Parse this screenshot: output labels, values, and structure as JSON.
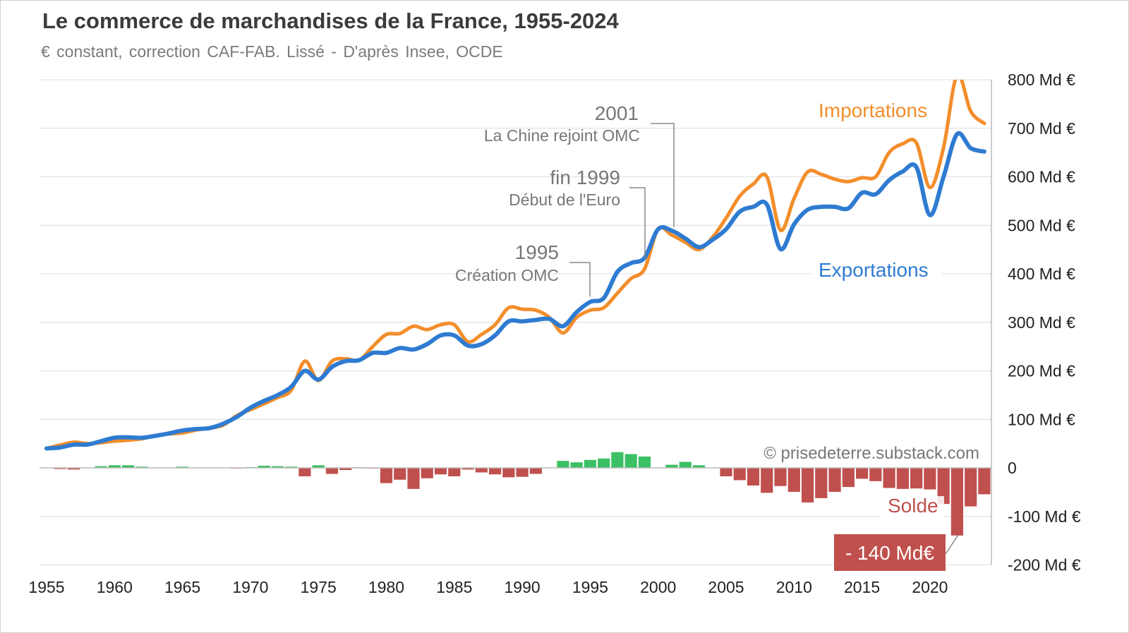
{
  "title": "Le commerce de marchandises de la France, 1955-2024",
  "subtitle": "€ constant, correction CAF-FAB. Lissé - D'après Insee, OCDE",
  "copyright": "© prisedeterre.substack.com",
  "colors": {
    "imports": "#f28e2b",
    "exports": "#2e7bd1",
    "surplus": "#3cc065",
    "deficit": "#c0504d"
  },
  "annotations": [
    {
      "year_label": "2001",
      "text": "La Chine rejoint OMC",
      "year": 2001
    },
    {
      "year_label": "fin 1999",
      "text": "Début de l'Euro",
      "year": 1999
    },
    {
      "year_label": "1995",
      "text": "Création OMC",
      "year": 1995
    }
  ],
  "labels": {
    "imports": "Importations",
    "exports": "Exportations",
    "solde": "Solde",
    "min_callout": "- 140 Md€"
  },
  "chart_data": {
    "type": "line",
    "title": "Le commerce de marchandises de la France, 1955-2024",
    "ylim": [
      -200,
      800
    ],
    "xlim": [
      1955,
      2024
    ],
    "yticks": [
      800,
      700,
      600,
      500,
      400,
      300,
      200,
      100,
      0,
      -100,
      -200
    ],
    "ytick_labels": [
      "800 Md €",
      "700 Md €",
      "600 Md €",
      "500 Md €",
      "400 Md €",
      "300 Md €",
      "200 Md €",
      "100 Md €",
      "0",
      "-100 Md €",
      "-200 Md €"
    ],
    "xticks": [
      "1955",
      "1960",
      "1965",
      "1970",
      "1975",
      "1980",
      "1985",
      "1990",
      "1995",
      "2000",
      "2005",
      "2010",
      "2015",
      "2020"
    ],
    "grid": true,
    "x": [
      1955,
      1956,
      1957,
      1958,
      1959,
      1960,
      1961,
      1962,
      1963,
      1964,
      1965,
      1966,
      1967,
      1968,
      1969,
      1970,
      1971,
      1972,
      1973,
      1974,
      1975,
      1976,
      1977,
      1978,
      1979,
      1980,
      1981,
      1982,
      1983,
      1984,
      1985,
      1986,
      1987,
      1988,
      1989,
      1990,
      1991,
      1992,
      1993,
      1994,
      1995,
      1996,
      1997,
      1998,
      1999,
      2000,
      2001,
      2002,
      2003,
      2004,
      2005,
      2006,
      2007,
      2008,
      2009,
      2010,
      2011,
      2012,
      2013,
      2014,
      2015,
      2016,
      2017,
      2018,
      2019,
      2020,
      2021,
      2022,
      2023,
      2024
    ],
    "series": [
      {
        "name": "Importations",
        "type": "line",
        "values": [
          40,
          47,
          53,
          50,
          52,
          55,
          57,
          60,
          66,
          70,
          72,
          78,
          82,
          88,
          108,
          120,
          132,
          145,
          160,
          220,
          180,
          220,
          225,
          222,
          250,
          275,
          277,
          292,
          285,
          295,
          295,
          260,
          275,
          295,
          330,
          327,
          325,
          310,
          278,
          310,
          325,
          330,
          360,
          390,
          410,
          492,
          480,
          465,
          450,
          475,
          515,
          560,
          585,
          600,
          490,
          555,
          610,
          605,
          595,
          590,
          598,
          600,
          650,
          668,
          670,
          578,
          660,
          810,
          735,
          710
        ]
      },
      {
        "name": "Exportations",
        "type": "line",
        "values": [
          40,
          42,
          48,
          48,
          55,
          62,
          63,
          62,
          66,
          71,
          77,
          80,
          82,
          91,
          105,
          124,
          138,
          150,
          167,
          200,
          182,
          208,
          220,
          222,
          237,
          237,
          247,
          244,
          255,
          273,
          273,
          252,
          255,
          273,
          302,
          302,
          305,
          307,
          292,
          321,
          342,
          350,
          404,
          422,
          433,
          492,
          489,
          473,
          455,
          470,
          492,
          528,
          538,
          543,
          451,
          502,
          532,
          538,
          538,
          535,
          567,
          564,
          593,
          611,
          620,
          521,
          600,
          688,
          659,
          652
        ]
      },
      {
        "name": "Solde",
        "type": "bar",
        "values": [
          0,
          -3,
          -4,
          0,
          4,
          6,
          6,
          3,
          0,
          0,
          3,
          1,
          1,
          1,
          -2,
          2,
          5,
          4,
          3,
          -18,
          6,
          -13,
          -5,
          2,
          -2,
          -32,
          -25,
          -44,
          -22,
          -14,
          -18,
          -4,
          -10,
          -14,
          -20,
          -19,
          -13,
          0,
          15,
          12,
          17,
          20,
          33,
          29,
          24,
          0,
          7,
          13,
          6,
          0,
          -18,
          -26,
          -37,
          -52,
          -38,
          -50,
          -72,
          -63,
          -50,
          -40,
          -23,
          -28,
          -42,
          -44,
          -43,
          -45,
          -75,
          -140,
          -80,
          -55
        ]
      }
    ]
  }
}
